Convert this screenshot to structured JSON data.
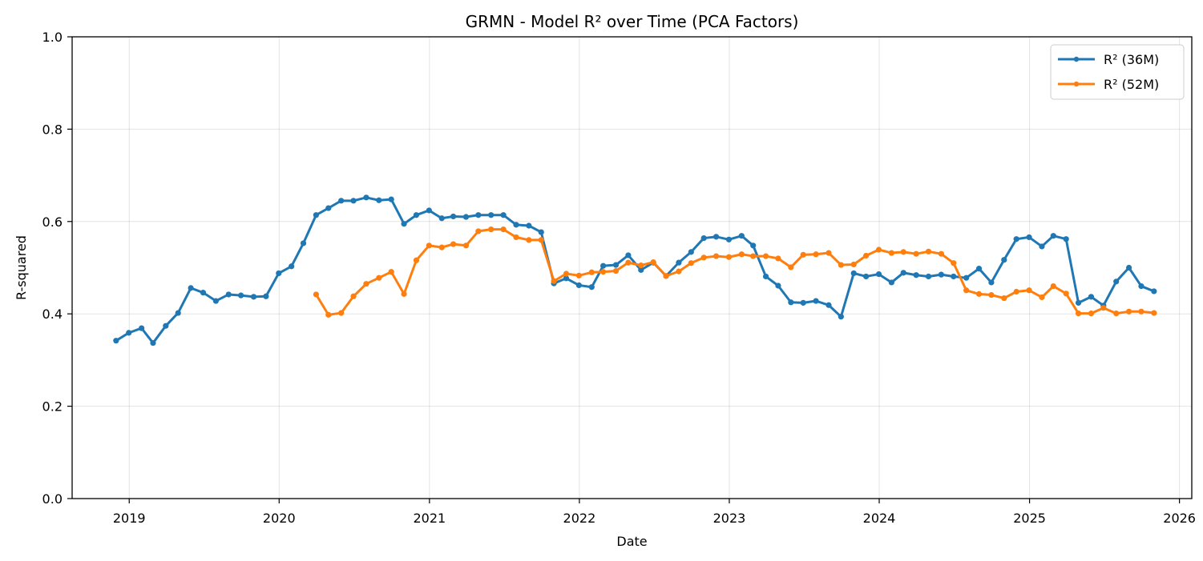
{
  "chart_data": {
    "type": "line",
    "title": "GRMN - Model R² over Time (PCA Factors)",
    "xlabel": "Date",
    "ylabel": "R-squared",
    "ylim": [
      0,
      1
    ],
    "xlim": [
      "2018-08-15",
      "2026-01-31"
    ],
    "x_ticks": [
      "2019",
      "2020",
      "2021",
      "2022",
      "2023",
      "2024",
      "2025",
      "2026"
    ],
    "y_ticks": [
      "0.0",
      "0.2",
      "0.4",
      "0.6",
      "0.8",
      "1.0"
    ],
    "grid": true,
    "legend_position": "top-right",
    "series": [
      {
        "name": "R² (36M)",
        "color": "#1f77b4",
        "points": [
          [
            "2018-11-30",
            0.342
          ],
          [
            "2018-12-31",
            0.359
          ],
          [
            "2019-01-31",
            0.369
          ],
          [
            "2019-02-28",
            0.337
          ],
          [
            "2019-03-31",
            0.374
          ],
          [
            "2019-04-30",
            0.402
          ],
          [
            "2019-05-31",
            0.456
          ],
          [
            "2019-06-30",
            0.446
          ],
          [
            "2019-07-31",
            0.428
          ],
          [
            "2019-08-31",
            0.442
          ],
          [
            "2019-09-30",
            0.44
          ],
          [
            "2019-10-31",
            0.437
          ],
          [
            "2019-11-30",
            0.438
          ],
          [
            "2019-12-31",
            0.488
          ],
          [
            "2020-01-31",
            0.503
          ],
          [
            "2020-02-29",
            0.553
          ],
          [
            "2020-03-31",
            0.614
          ],
          [
            "2020-04-30",
            0.629
          ],
          [
            "2020-05-31",
            0.645
          ],
          [
            "2020-06-30",
            0.645
          ],
          [
            "2020-07-31",
            0.652
          ],
          [
            "2020-08-31",
            0.646
          ],
          [
            "2020-09-30",
            0.648
          ],
          [
            "2020-10-31",
            0.595
          ],
          [
            "2020-11-30",
            0.614
          ],
          [
            "2020-12-31",
            0.624
          ],
          [
            "2021-01-31",
            0.607
          ],
          [
            "2021-02-28",
            0.611
          ],
          [
            "2021-03-31",
            0.61
          ],
          [
            "2021-04-30",
            0.614
          ],
          [
            "2021-05-31",
            0.614
          ],
          [
            "2021-06-30",
            0.614
          ],
          [
            "2021-07-31",
            0.593
          ],
          [
            "2021-08-31",
            0.591
          ],
          [
            "2021-09-30",
            0.577
          ],
          [
            "2021-10-31",
            0.466
          ],
          [
            "2021-11-30",
            0.477
          ],
          [
            "2021-12-31",
            0.462
          ],
          [
            "2022-01-31",
            0.458
          ],
          [
            "2022-02-28",
            0.504
          ],
          [
            "2022-03-31",
            0.506
          ],
          [
            "2022-04-30",
            0.527
          ],
          [
            "2022-05-31",
            0.495
          ],
          [
            "2022-06-30",
            0.511
          ],
          [
            "2022-07-31",
            0.482
          ],
          [
            "2022-08-31",
            0.511
          ],
          [
            "2022-09-30",
            0.534
          ],
          [
            "2022-10-31",
            0.564
          ],
          [
            "2022-11-30",
            0.567
          ],
          [
            "2022-12-31",
            0.561
          ],
          [
            "2023-01-31",
            0.569
          ],
          [
            "2023-02-28",
            0.548
          ],
          [
            "2023-03-31",
            0.481
          ],
          [
            "2023-04-30",
            0.461
          ],
          [
            "2023-05-31",
            0.425
          ],
          [
            "2023-06-30",
            0.424
          ],
          [
            "2023-07-31",
            0.428
          ],
          [
            "2023-08-31",
            0.419
          ],
          [
            "2023-09-30",
            0.394
          ],
          [
            "2023-10-31",
            0.488
          ],
          [
            "2023-11-30",
            0.481
          ],
          [
            "2023-12-31",
            0.486
          ],
          [
            "2024-01-31",
            0.468
          ],
          [
            "2024-02-29",
            0.489
          ],
          [
            "2024-03-31",
            0.484
          ],
          [
            "2024-04-30",
            0.481
          ],
          [
            "2024-05-31",
            0.485
          ],
          [
            "2024-06-30",
            0.481
          ],
          [
            "2024-07-31",
            0.478
          ],
          [
            "2024-08-31",
            0.498
          ],
          [
            "2024-09-30",
            0.468
          ],
          [
            "2024-10-31",
            0.517
          ],
          [
            "2024-11-30",
            0.562
          ],
          [
            "2024-12-31",
            0.566
          ],
          [
            "2025-01-31",
            0.546
          ],
          [
            "2025-02-28",
            0.569
          ],
          [
            "2025-03-31",
            0.562
          ],
          [
            "2025-04-30",
            0.424
          ],
          [
            "2025-05-31",
            0.437
          ],
          [
            "2025-06-30",
            0.418
          ],
          [
            "2025-07-31",
            0.47
          ],
          [
            "2025-08-31",
            0.5
          ],
          [
            "2025-09-30",
            0.46
          ],
          [
            "2025-10-31",
            0.449
          ]
        ]
      },
      {
        "name": "R² (52M)",
        "color": "#ff7f0e",
        "points": [
          [
            "2020-03-31",
            0.442
          ],
          [
            "2020-04-30",
            0.398
          ],
          [
            "2020-05-31",
            0.402
          ],
          [
            "2020-06-30",
            0.438
          ],
          [
            "2020-07-31",
            0.465
          ],
          [
            "2020-08-31",
            0.478
          ],
          [
            "2020-09-30",
            0.491
          ],
          [
            "2020-10-31",
            0.443
          ],
          [
            "2020-11-30",
            0.516
          ],
          [
            "2020-12-31",
            0.548
          ],
          [
            "2021-01-31",
            0.544
          ],
          [
            "2021-02-28",
            0.551
          ],
          [
            "2021-03-31",
            0.548
          ],
          [
            "2021-04-30",
            0.579
          ],
          [
            "2021-05-31",
            0.583
          ],
          [
            "2021-06-30",
            0.583
          ],
          [
            "2021-07-31",
            0.566
          ],
          [
            "2021-08-31",
            0.56
          ],
          [
            "2021-09-30",
            0.56
          ],
          [
            "2021-10-31",
            0.471
          ],
          [
            "2021-11-30",
            0.487
          ],
          [
            "2021-12-31",
            0.483
          ],
          [
            "2022-01-31",
            0.49
          ],
          [
            "2022-02-28",
            0.491
          ],
          [
            "2022-03-31",
            0.493
          ],
          [
            "2022-04-30",
            0.511
          ],
          [
            "2022-05-31",
            0.505
          ],
          [
            "2022-06-30",
            0.512
          ],
          [
            "2022-07-31",
            0.482
          ],
          [
            "2022-08-31",
            0.492
          ],
          [
            "2022-09-30",
            0.51
          ],
          [
            "2022-10-31",
            0.522
          ],
          [
            "2022-11-30",
            0.525
          ],
          [
            "2022-12-31",
            0.523
          ],
          [
            "2023-01-31",
            0.529
          ],
          [
            "2023-02-28",
            0.525
          ],
          [
            "2023-03-31",
            0.525
          ],
          [
            "2023-04-30",
            0.52
          ],
          [
            "2023-05-31",
            0.501
          ],
          [
            "2023-06-30",
            0.528
          ],
          [
            "2023-07-31",
            0.529
          ],
          [
            "2023-08-31",
            0.532
          ],
          [
            "2023-09-30",
            0.506
          ],
          [
            "2023-10-31",
            0.507
          ],
          [
            "2023-11-30",
            0.526
          ],
          [
            "2023-12-31",
            0.539
          ],
          [
            "2024-01-31",
            0.532
          ],
          [
            "2024-02-29",
            0.534
          ],
          [
            "2024-03-31",
            0.53
          ],
          [
            "2024-04-30",
            0.535
          ],
          [
            "2024-05-31",
            0.53
          ],
          [
            "2024-06-30",
            0.51
          ],
          [
            "2024-07-31",
            0.451
          ],
          [
            "2024-08-31",
            0.443
          ],
          [
            "2024-09-30",
            0.441
          ],
          [
            "2024-10-31",
            0.434
          ],
          [
            "2024-11-30",
            0.448
          ],
          [
            "2024-12-31",
            0.451
          ],
          [
            "2025-01-31",
            0.436
          ],
          [
            "2025-02-28",
            0.46
          ],
          [
            "2025-03-31",
            0.444
          ],
          [
            "2025-04-30",
            0.401
          ],
          [
            "2025-05-31",
            0.401
          ],
          [
            "2025-06-30",
            0.413
          ],
          [
            "2025-07-31",
            0.401
          ],
          [
            "2025-08-31",
            0.405
          ],
          [
            "2025-09-30",
            0.405
          ],
          [
            "2025-10-31",
            0.402
          ]
        ]
      }
    ]
  }
}
